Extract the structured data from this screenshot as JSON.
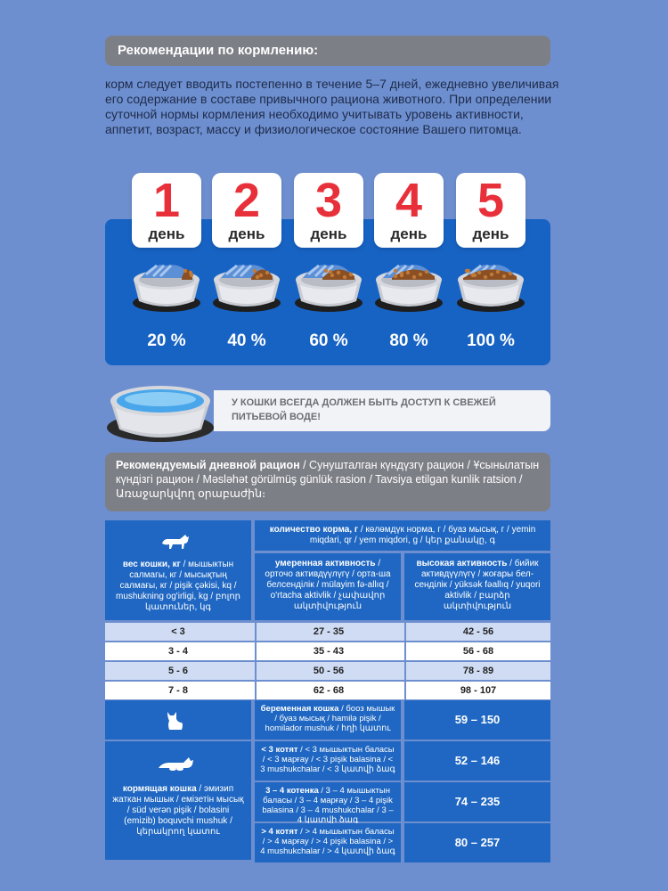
{
  "header": {
    "title": "Рекомендации по кормлению:"
  },
  "intro": {
    "text": "корм следует вводить постепенно в течение 5–7 дней, ежедневно увеличивая его содержание в составе привычного рациона животного. При определении суточной нормы кормления необходимо учитывать уровень активности, аппетит, возраст, массу и физиологическое состояние Вашего питомца."
  },
  "days": [
    {
      "num": "1",
      "label": "день",
      "percent": "20 %",
      "fraction": 0.2
    },
    {
      "num": "2",
      "label": "день",
      "percent": "40 %",
      "fraction": 0.4
    },
    {
      "num": "3",
      "label": "день",
      "percent": "60 %",
      "fraction": 0.6
    },
    {
      "num": "4",
      "label": "день",
      "percent": "80 %",
      "fraction": 0.8
    },
    {
      "num": "5",
      "label": "день",
      "percent": "100 %",
      "fraction": 1.0
    }
  ],
  "water": {
    "line1": "У КОШКИ ВСЕГДА ДОЛЖЕН БЫТЬ ДОСТУП К СВЕЖЕЙ",
    "line2": "ПИТЬЕВОЙ ВОДЕ!"
  },
  "ration": {
    "bold": "Рекомендуемый дневной рацион",
    "rest": " / Сунушталган күндүзгү рацион / Ұсынылатын күндізгі рацион / Məsləhət görülmüş günlük rasion / Tavsiya etilgan kunlik ratsion / Առաջարկվող օրաբաժին։"
  },
  "table": {
    "amount_bold": "количество корма, г",
    "amount_rest": " / көлөмдүк норма, г / буаз мысық, г / yemin miqdari, qr / yem miqdori, g / կեր քանակը, գ",
    "weight_bold": "вес кошки, кг",
    "weight_rest": " / мышыктын салмагы, кг / мысықтың салмағы, кг / pişik çəkisi, kq / mushukning og'irligi, kg / բոլոր կատուներ, կգ",
    "moderate_bold": "умеренная активность",
    "moderate_rest": " / орточо активдүүлүгү / орта-ша белсенділік / mülayim fə-allıq / o'rtacha aktivlik / չափավոր ակտիվություն",
    "high_bold": "высокая активность",
    "high_rest": " / бийик активдүүлүгү / жоғары бел-сенділік / yüksək fəallıq / yuqori aktivlik / բարձր ակտիվություն",
    "rows": [
      {
        "weight": "< 3",
        "moderate": "27 - 35",
        "high": "42 - 56"
      },
      {
        "weight": "3 - 4",
        "moderate": "35 - 43",
        "high": "56 - 68"
      },
      {
        "weight": "5 - 6",
        "moderate": "50 - 56",
        "high": "78 - 89"
      },
      {
        "weight": "7 - 8",
        "moderate": "62 - 68",
        "high": "98 - 107"
      }
    ],
    "pregnant_bold": "беременная кошка",
    "pregnant_rest": " / боoз мышык / буаз мысық / hamilə pişik / homilador mushuk / հղի կատու",
    "pregnant_value": "59 – 150",
    "nursing_bold": "кормящая кошка",
    "nursing_rest": " / эмизип жаткан мышык / емізетін мысық / süd verən pişik / bolasini (emizib) boquvchi mushuk / կերակրող կատու",
    "kittens": [
      {
        "bold": "< 3 котят",
        "rest": " / < 3 мышыктын баласы / < 3 марғау / < 3 pişik balasina / < 3 mushukchalar / < 3 կատվի ձագ",
        "value": "52 – 146"
      },
      {
        "bold": "3 – 4 котенка",
        "rest": " / 3 – 4 мышыктын баласы / 3 – 4 марғау / 3 – 4 pişik balasina / 3 – 4 mushukchalar / 3 – 4 կատվի ձագ",
        "value": "74 – 235"
      },
      {
        "bold": "> 4 котят",
        "rest": " / > 4 мышыктын баласы / > 4 марғау / > 4 pişik balasina / > 4 mushukchalar / > 4 կատվի ձագ",
        "value": "80 – 257"
      }
    ]
  },
  "colors": {
    "panel_blue": "#1763c4",
    "red": "#e8303a",
    "grey": "#7d7f86"
  }
}
